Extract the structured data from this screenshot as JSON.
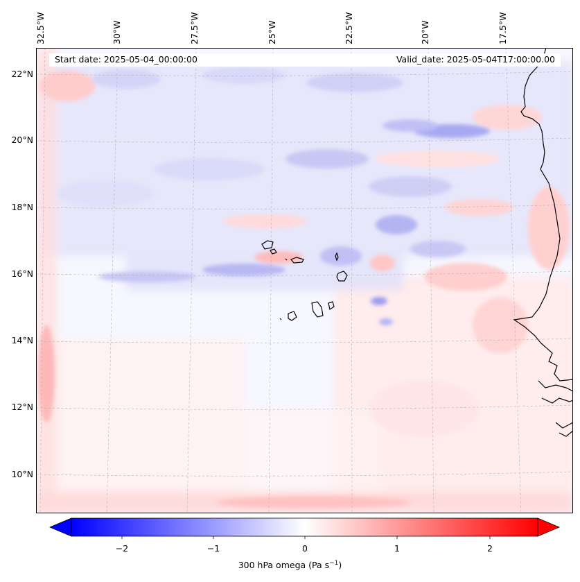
{
  "map": {
    "variable": "300 hPa omega",
    "units": "Pa s⁻¹",
    "colorbar_label_prefix": "300 hPa omega (Pa s",
    "colorbar_label_exp": "−1",
    "colorbar_label_suffix": ")",
    "start_date": "Start date: 2025-05-04_00:00:00",
    "valid_date": "Valid_date: 2025-05-04T17:00:00.00",
    "lon_labels": [
      "32.5°W",
      "30°W",
      "27.5°W",
      "25°W",
      "22.5°W",
      "20°W",
      "17.5°W"
    ],
    "lat_labels": [
      "22°N",
      "20°N",
      "18°N",
      "16°N",
      "14°N",
      "12°N",
      "10°N"
    ],
    "colorbar": {
      "min": -2.6,
      "max": 2.6,
      "extend": "both",
      "cmap": "bwr",
      "ticks": [
        -2,
        -1,
        0,
        1,
        2
      ],
      "tick_labels": [
        "−2",
        "−1",
        "0",
        "1",
        "2"
      ]
    },
    "colors": {
      "negative": "#0000ff",
      "zero": "#ffffff",
      "positive": "#ff0000",
      "coast": "#000000",
      "grid": "#b0b0b0"
    },
    "region": "Cape Verde Islands and West African coast (Senegal, Mauritania, Guinea-Bissau)"
  }
}
